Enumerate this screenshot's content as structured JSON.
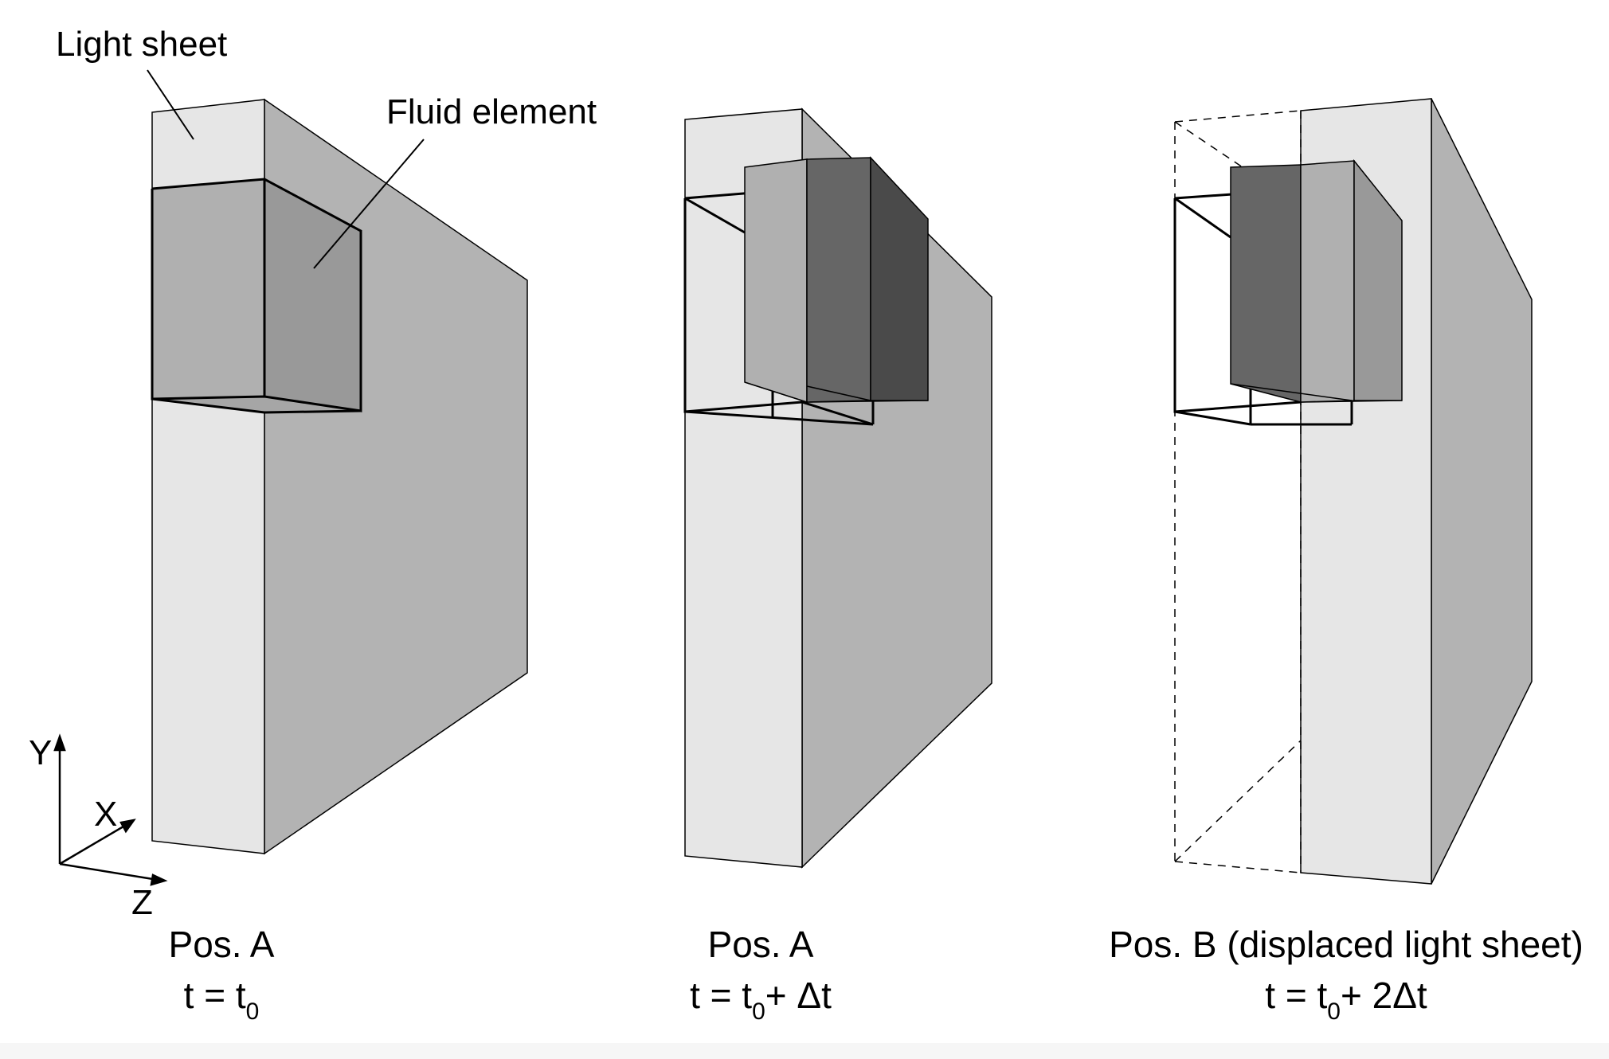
{
  "labels": {
    "light_sheet": "Light sheet",
    "fluid_element": "Fluid element"
  },
  "axes": {
    "y": "Y",
    "x": "X",
    "z": "Z"
  },
  "panels": [
    {
      "position": "Pos. A",
      "time_prefix": "t = t",
      "time_sub": "0",
      "time_suffix": ""
    },
    {
      "position": "Pos. A",
      "time_prefix": "t = t",
      "time_sub": "0",
      "time_suffix": "+ Δt"
    },
    {
      "position": "Pos. B (displaced light sheet)",
      "time_prefix": "t = t",
      "time_sub": "0",
      "time_suffix": "+ 2Δt"
    }
  ],
  "colors": {
    "sheet_front": "#e6e6e6",
    "sheet_side": "#b3b3b3",
    "fluid_light": "#b0b0b0",
    "fluid_mid": "#999999",
    "fluid_dark": "#666666",
    "fluid_darkest": "#4a4a4a",
    "outline": "#000000"
  }
}
